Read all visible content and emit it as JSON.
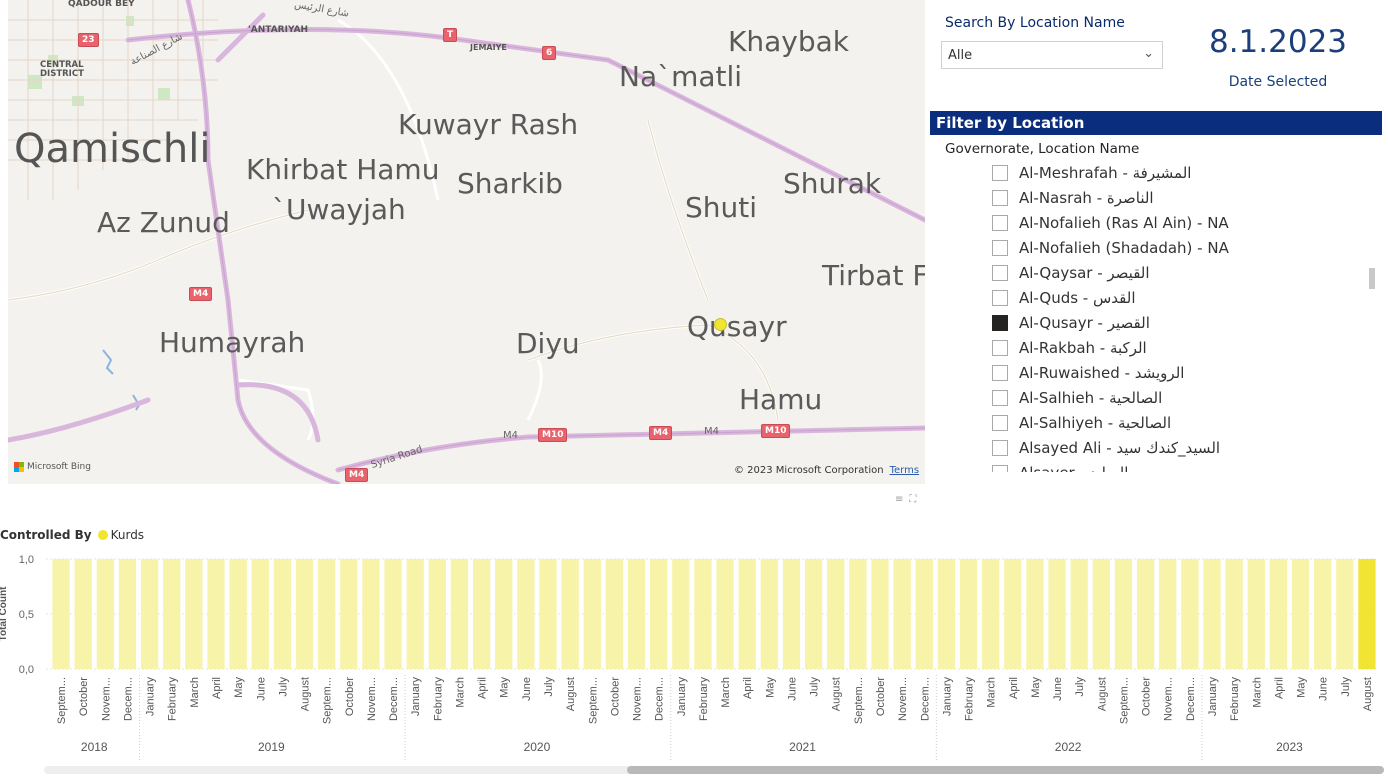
{
  "map": {
    "places": [
      {
        "id": "qadour-bey",
        "text": "QADOUR BEY"
      },
      {
        "id": "antariyah",
        "text": "'ANTARIYAH"
      },
      {
        "id": "jemaiye",
        "text": "JEMAIYE"
      },
      {
        "id": "central-district",
        "text": "CENTRAL\nDISTRICT"
      },
      {
        "id": "khaybak",
        "text": "Khaybak"
      },
      {
        "id": "namatli",
        "text": "Na`matli"
      },
      {
        "id": "kuwayr-rash",
        "text": "Kuwayr Rash"
      },
      {
        "id": "qamischli",
        "text": "Qamischli"
      },
      {
        "id": "khirbat-hamu",
        "text": "Khirbat Hamu"
      },
      {
        "id": "sharkib",
        "text": "Sharkib"
      },
      {
        "id": "shurak",
        "text": "Shurak"
      },
      {
        "id": "uwayjah",
        "text": "`Uwayjah"
      },
      {
        "id": "shuti",
        "text": "Shuti"
      },
      {
        "id": "az-zunud",
        "text": "Az Zunud"
      },
      {
        "id": "tirbat-fa",
        "text": "Tirbat Fa"
      },
      {
        "id": "qusayr",
        "text": "Qusayr"
      },
      {
        "id": "humayrah",
        "text": "Humayrah"
      },
      {
        "id": "diyu",
        "text": "Diyu"
      },
      {
        "id": "hamu",
        "text": "Hamu"
      }
    ],
    "shields": [
      "23",
      "T",
      "6",
      "M4",
      "M4",
      "M10",
      "M4",
      "M10",
      "M4"
    ],
    "road_labels": [
      "M4",
      "M4",
      "Syria Road",
      "شارع الرئيس",
      "شارع الصناعة"
    ],
    "attribution": "Microsoft Bing",
    "copyright": "© 2023 Microsoft Corporation",
    "terms": "Terms"
  },
  "search": {
    "label": "Search By Location Name",
    "value": "Alle"
  },
  "date": {
    "value": "8.1.2023",
    "label": "Date Selected"
  },
  "filter": {
    "header": "Filter by Location",
    "subheader": "Governorate, Location Name",
    "items": [
      {
        "label": "Al-Meshrafah - المشيرفة",
        "checked": false
      },
      {
        "label": "Al-Nasrah - الناصرة",
        "checked": false
      },
      {
        "label": "Al-Nofalieh (Ras Al Ain) - NA",
        "checked": false
      },
      {
        "label": "Al-Nofalieh (Shadadah) - NA",
        "checked": false
      },
      {
        "label": "Al-Qaysar - القيصر",
        "checked": false
      },
      {
        "label": "Al-Quds - القدس",
        "checked": false
      },
      {
        "label": "Al-Qusayr - القصير",
        "checked": true
      },
      {
        "label": "Al-Rakbah - الركبة",
        "checked": false
      },
      {
        "label": "Al-Ruwaished - الرويشد",
        "checked": false
      },
      {
        "label": "Al-Salhieh - الصالحية",
        "checked": false
      },
      {
        "label": "Al-Salhiyeh - الصالحية",
        "checked": false
      },
      {
        "label": "Alsayed Ali - السيد_كندك سيد",
        "checked": false
      },
      {
        "label": "Alsayer - السايد",
        "checked": false
      }
    ]
  },
  "legend": {
    "title": "Controlled By",
    "series": "Kurds"
  },
  "colors": {
    "bar": "#f7f3a8",
    "bar_highlight": "#f2e433",
    "header_bg": "#0b2d7e",
    "title_blue": "#1a3f7a"
  },
  "chart_data": {
    "type": "bar",
    "ylabel": "Total Count",
    "ylim": [
      0,
      1
    ],
    "yticks": [
      "0,0",
      "0,5",
      "1,0"
    ],
    "series": [
      {
        "name": "Kurds"
      }
    ],
    "categories": [
      "Septem...",
      "October",
      "Novem...",
      "Decem...",
      "January",
      "February",
      "March",
      "April",
      "May",
      "June",
      "July",
      "August",
      "Septem...",
      "October",
      "Novem...",
      "Decem...",
      "January",
      "February",
      "March",
      "April",
      "May",
      "June",
      "July",
      "August",
      "Septem...",
      "October",
      "Novem...",
      "Decem...",
      "January",
      "February",
      "March",
      "April",
      "May",
      "June",
      "July",
      "August",
      "Septem...",
      "October",
      "Novem...",
      "Decem...",
      "January",
      "February",
      "March",
      "April",
      "May",
      "June",
      "July",
      "August",
      "Septem...",
      "October",
      "Novem...",
      "Decem...",
      "January",
      "February",
      "March",
      "April",
      "May",
      "June",
      "July",
      "August"
    ],
    "values": [
      1,
      1,
      1,
      1,
      1,
      1,
      1,
      1,
      1,
      1,
      1,
      1,
      1,
      1,
      1,
      1,
      1,
      1,
      1,
      1,
      1,
      1,
      1,
      1,
      1,
      1,
      1,
      1,
      1,
      1,
      1,
      1,
      1,
      1,
      1,
      1,
      1,
      1,
      1,
      1,
      1,
      1,
      1,
      1,
      1,
      1,
      1,
      1,
      1,
      1,
      1,
      1,
      1,
      1,
      1,
      1,
      1,
      1,
      1,
      1
    ],
    "highlight_index": 59,
    "years": [
      {
        "label": "2018",
        "count": 4
      },
      {
        "label": "2019",
        "count": 12
      },
      {
        "label": "2020",
        "count": 12
      },
      {
        "label": "2021",
        "count": 12
      },
      {
        "label": "2022",
        "count": 12
      },
      {
        "label": "2023",
        "count": 8
      }
    ]
  }
}
